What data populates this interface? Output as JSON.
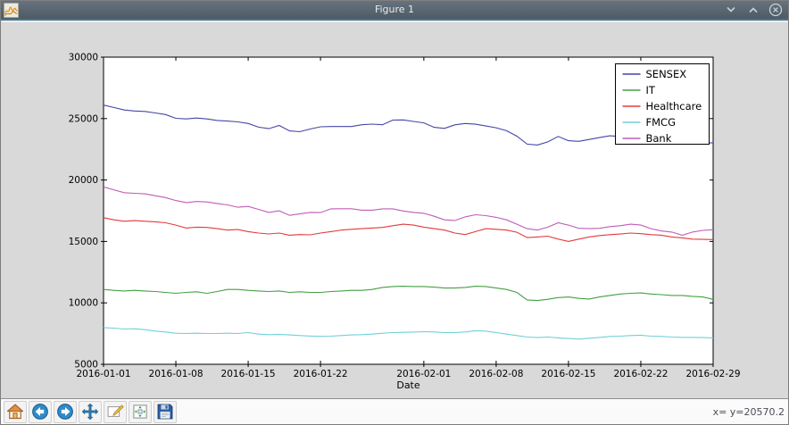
{
  "window": {
    "title": "Figure 1",
    "icons": {
      "app": "matplotlib-icon",
      "minimize": "chevron-down",
      "maximize": "chevron-up",
      "close": "circle-x"
    }
  },
  "toolbar": {
    "buttons": [
      "home-icon",
      "back-icon",
      "forward-icon",
      "pan-icon",
      "zoom-rect-icon",
      "subplots-icon",
      "save-icon"
    ],
    "status": "x= y=20570.2"
  },
  "chart_data": {
    "type": "line",
    "title": "",
    "xlabel": "Date",
    "ylabel": "",
    "x_start": "2016-01-01",
    "x_end": "2016-02-29",
    "x_interval_days": 1,
    "xlim_days": [
      0,
      59
    ],
    "ylim": [
      5000,
      30000
    ],
    "grid": false,
    "legend_position": "upper right",
    "y_ticks": [
      5000,
      10000,
      15000,
      20000,
      25000,
      30000
    ],
    "x_ticks": {
      "days": [
        0,
        7,
        14,
        21,
        31,
        38,
        45,
        52,
        59
      ],
      "labels": [
        "2016-01-01",
        "2016-01-08",
        "2016-01-15",
        "2016-01-22",
        "2016-02-01",
        "2016-02-08",
        "2016-02-15",
        "2016-02-22",
        "2016-02-29"
      ]
    },
    "series": [
      {
        "name": "SENSEX",
        "color": "#4545a5",
        "values": [
          26100,
          25900,
          25700,
          25620,
          25580,
          25460,
          25330,
          25020,
          24970,
          25040,
          24970,
          24850,
          24800,
          24730,
          24600,
          24300,
          24180,
          24440,
          24000,
          23930,
          24150,
          24330,
          24350,
          24350,
          24350,
          24500,
          24550,
          24500,
          24880,
          24890,
          24770,
          24650,
          24290,
          24200,
          24490,
          24600,
          24540,
          24400,
          24250,
          24010,
          23570,
          22920,
          22850,
          23100,
          23550,
          23200,
          23150,
          23300,
          23450,
          23600,
          23550,
          23450,
          23350,
          23200,
          23100,
          22980,
          22970,
          22990,
          23000,
          23030
        ]
      },
      {
        "name": "IT",
        "color": "#44a044",
        "values": [
          11090,
          11020,
          10970,
          11020,
          10970,
          10920,
          10850,
          10780,
          10850,
          10900,
          10780,
          10920,
          11090,
          11090,
          11020,
          10970,
          10920,
          10970,
          10850,
          10900,
          10850,
          10850,
          10920,
          10970,
          11020,
          11020,
          11090,
          11260,
          11330,
          11350,
          11330,
          11330,
          11280,
          11210,
          11210,
          11260,
          11350,
          11330,
          11210,
          11090,
          10850,
          10240,
          10190,
          10290,
          10430,
          10480,
          10360,
          10310,
          10480,
          10600,
          10720,
          10780,
          10810,
          10720,
          10670,
          10600,
          10600,
          10530,
          10480,
          10280
        ]
      },
      {
        "name": "Healthcare",
        "color": "#e23b3b",
        "values": [
          16930,
          16760,
          16640,
          16690,
          16640,
          16600,
          16520,
          16330,
          16090,
          16160,
          16140,
          16040,
          15920,
          15970,
          15800,
          15680,
          15610,
          15680,
          15510,
          15560,
          15540,
          15680,
          15800,
          15920,
          15990,
          16040,
          16090,
          16140,
          16280,
          16400,
          16330,
          16160,
          16040,
          15920,
          15680,
          15560,
          15800,
          16040,
          15990,
          15920,
          15750,
          15310,
          15360,
          15430,
          15190,
          15000,
          15190,
          15360,
          15480,
          15550,
          15600,
          15680,
          15630,
          15550,
          15510,
          15360,
          15290,
          15190,
          15170,
          15150
        ]
      },
      {
        "name": "FMCG",
        "color": "#6fd0d8",
        "values": [
          7990,
          7940,
          7870,
          7890,
          7820,
          7700,
          7630,
          7530,
          7510,
          7530,
          7510,
          7510,
          7530,
          7510,
          7580,
          7460,
          7410,
          7430,
          7390,
          7340,
          7300,
          7270,
          7290,
          7340,
          7390,
          7410,
          7460,
          7530,
          7580,
          7600,
          7620,
          7650,
          7630,
          7580,
          7580,
          7630,
          7730,
          7700,
          7580,
          7460,
          7340,
          7220,
          7170,
          7220,
          7150,
          7100,
          7050,
          7120,
          7190,
          7270,
          7290,
          7340,
          7370,
          7290,
          7270,
          7220,
          7190,
          7190,
          7170,
          7150
        ]
      },
      {
        "name": "Bank",
        "color": "#c05cb8",
        "values": [
          19440,
          19200,
          18970,
          18920,
          18870,
          18720,
          18570,
          18330,
          18160,
          18250,
          18210,
          18090,
          17970,
          17780,
          17850,
          17610,
          17360,
          17490,
          17120,
          17240,
          17360,
          17350,
          17650,
          17660,
          17660,
          17540,
          17540,
          17650,
          17650,
          17480,
          17360,
          17290,
          17050,
          16760,
          16700,
          17000,
          17170,
          17100,
          16960,
          16760,
          16400,
          16040,
          15920,
          16160,
          16520,
          16330,
          16070,
          16040,
          16070,
          16210,
          16280,
          16400,
          16330,
          16040,
          15850,
          15760,
          15500,
          15760,
          15900,
          15950
        ]
      }
    ]
  }
}
